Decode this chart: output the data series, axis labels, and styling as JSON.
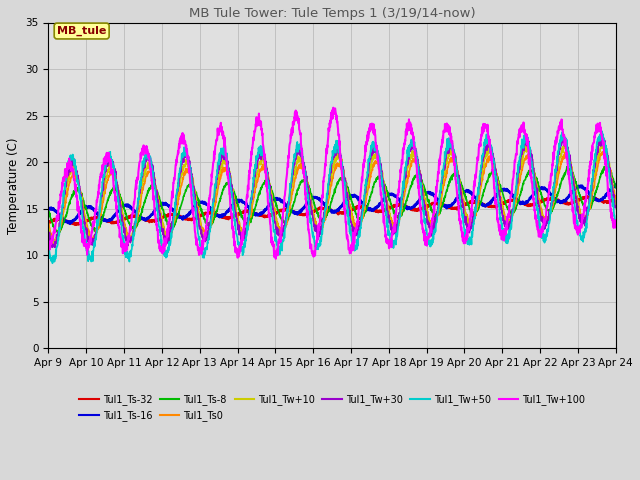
{
  "title": "MB Tule Tower: Tule Temps 1 (3/19/14-now)",
  "ylabel": "Temperature (C)",
  "xlabel": "",
  "ylim": [
    0,
    35
  ],
  "yticks": [
    0,
    5,
    10,
    15,
    20,
    25,
    30,
    35
  ],
  "background_color": "#d8d8d8",
  "plot_bg_color": "#e0e0e0",
  "legend_box_color": "#ffff99",
  "legend_box_edge": "#999900",
  "annotation_text": "MB_tule",
  "annotation_color": "#880000",
  "series_order": [
    "Tul1_Ts-32",
    "Tul1_Ts-16",
    "Tul1_Ts-8",
    "Tul1_Ts0",
    "Tul1_Tw+10",
    "Tul1_Tw+30",
    "Tul1_Tw+50",
    "Tul1_Tw+100"
  ],
  "series": {
    "Tul1_Ts-32": {
      "color": "#dd0000",
      "lw": 1.8
    },
    "Tul1_Ts-16": {
      "color": "#0000dd",
      "lw": 1.8
    },
    "Tul1_Ts-8": {
      "color": "#00bb00",
      "lw": 1.2
    },
    "Tul1_Ts0": {
      "color": "#ff8800",
      "lw": 1.2
    },
    "Tul1_Tw+10": {
      "color": "#cccc00",
      "lw": 1.2
    },
    "Tul1_Tw+30": {
      "color": "#9900cc",
      "lw": 1.2
    },
    "Tul1_Tw+50": {
      "color": "#00cccc",
      "lw": 1.2
    },
    "Tul1_Tw+100": {
      "color": "#ff00ff",
      "lw": 1.5
    }
  },
  "xtick_labels": [
    "Apr 9",
    "Apr 10",
    "Apr 11",
    "Apr 12",
    "Apr 13",
    "Apr 14",
    "Apr 15",
    "Apr 16",
    "Apr 17",
    "Apr 18",
    "Apr 19",
    "Apr 20",
    "Apr 21",
    "Apr 22",
    "Apr 23",
    "Apr 24"
  ],
  "figsize": [
    6.4,
    4.8
  ],
  "dpi": 100
}
